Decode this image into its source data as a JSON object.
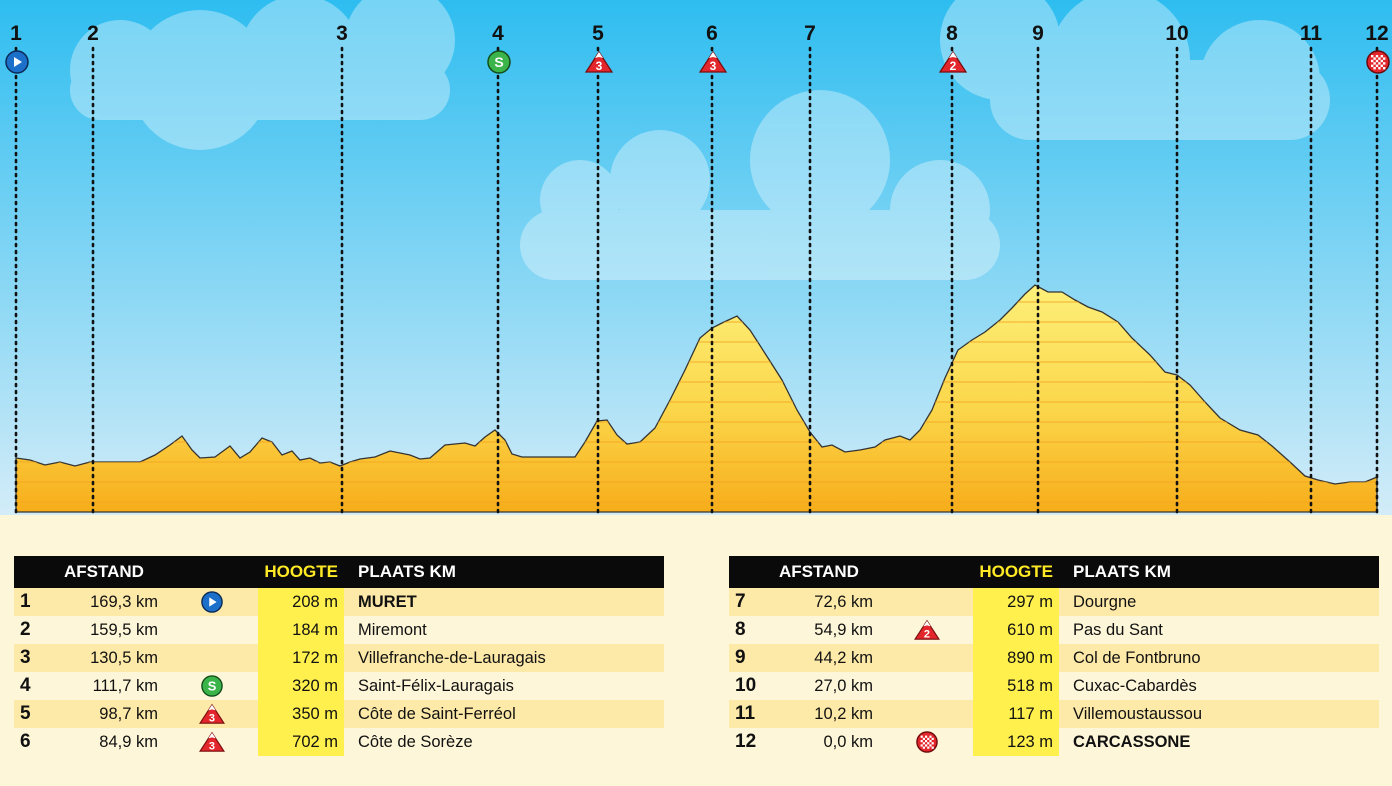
{
  "profile": {
    "markers": [
      {
        "num": "1",
        "icon": "start-icon"
      },
      {
        "num": "2",
        "icon": ""
      },
      {
        "num": "3",
        "icon": ""
      },
      {
        "num": "4",
        "icon": "sprint-icon"
      },
      {
        "num": "5",
        "icon": "climb-cat3-icon"
      },
      {
        "num": "6",
        "icon": "climb-cat3-icon"
      },
      {
        "num": "7",
        "icon": ""
      },
      {
        "num": "8",
        "icon": "climb-cat2-icon"
      },
      {
        "num": "9",
        "icon": ""
      },
      {
        "num": "10",
        "icon": ""
      },
      {
        "num": "11",
        "icon": ""
      },
      {
        "num": "12",
        "icon": "finish-icon"
      }
    ],
    "colors": {
      "sky_top": "#2ebdf0",
      "sky_bottom": "#cfeaf7",
      "fill_top": "#fdee66",
      "fill_bottom": "#f8b41a",
      "stripe": "#f6a623",
      "start_blue": "#1c70c9",
      "sprint_green": "#3bb54a",
      "climb_red": "#e3262b",
      "finish_red": "#e3262b"
    }
  },
  "headers": {
    "afstand": "AFSTAND",
    "hoogte": "HOOGTE",
    "plaats": "PLAATS KM"
  },
  "table_left": [
    {
      "num": "1",
      "afstand": "169,3 km",
      "icon": "start-icon",
      "hoogte": "208 m",
      "plaats": "MURET",
      "bold": true
    },
    {
      "num": "2",
      "afstand": "159,5 km",
      "icon": "",
      "hoogte": "184 m",
      "plaats": "Miremont",
      "bold": false
    },
    {
      "num": "3",
      "afstand": "130,5 km",
      "icon": "",
      "hoogte": "172 m",
      "plaats": "Villefranche-de-Lauragais",
      "bold": false
    },
    {
      "num": "4",
      "afstand": "111,7 km",
      "icon": "sprint-icon",
      "hoogte": "320 m",
      "plaats": "Saint-Félix-Lauragais",
      "bold": false
    },
    {
      "num": "5",
      "afstand": "98,7 km",
      "icon": "climb-cat3-icon",
      "hoogte": "350 m",
      "plaats": "Côte de Saint-Ferréol",
      "bold": false
    },
    {
      "num": "6",
      "afstand": "84,9 km",
      "icon": "climb-cat3-icon",
      "hoogte": "702 m",
      "plaats": "Côte de Sorèze",
      "bold": false
    }
  ],
  "table_right": [
    {
      "num": "7",
      "afstand": "72,6 km",
      "icon": "",
      "hoogte": "297 m",
      "plaats": "Dourgne",
      "bold": false
    },
    {
      "num": "8",
      "afstand": "54,9 km",
      "icon": "climb-cat2-icon",
      "hoogte": "610 m",
      "plaats": "Pas du Sant",
      "bold": false
    },
    {
      "num": "9",
      "afstand": "44,2 km",
      "icon": "",
      "hoogte": "890 m",
      "plaats": "Col de Fontbruno",
      "bold": false
    },
    {
      "num": "10",
      "afstand": "27,0 km",
      "icon": "",
      "hoogte": "518 m",
      "plaats": "Cuxac-Cabardès",
      "bold": false
    },
    {
      "num": "11",
      "afstand": "10,2 km",
      "icon": "",
      "hoogte": "117 m",
      "plaats": "Villemoustaussou",
      "bold": false
    },
    {
      "num": "12",
      "afstand": "0,0 km",
      "icon": "finish-icon",
      "hoogte": "123 m",
      "plaats": "CARCASSONE",
      "bold": true
    }
  ],
  "icon_labels": {
    "sprint": "S",
    "cat3": "3",
    "cat2": "2"
  }
}
